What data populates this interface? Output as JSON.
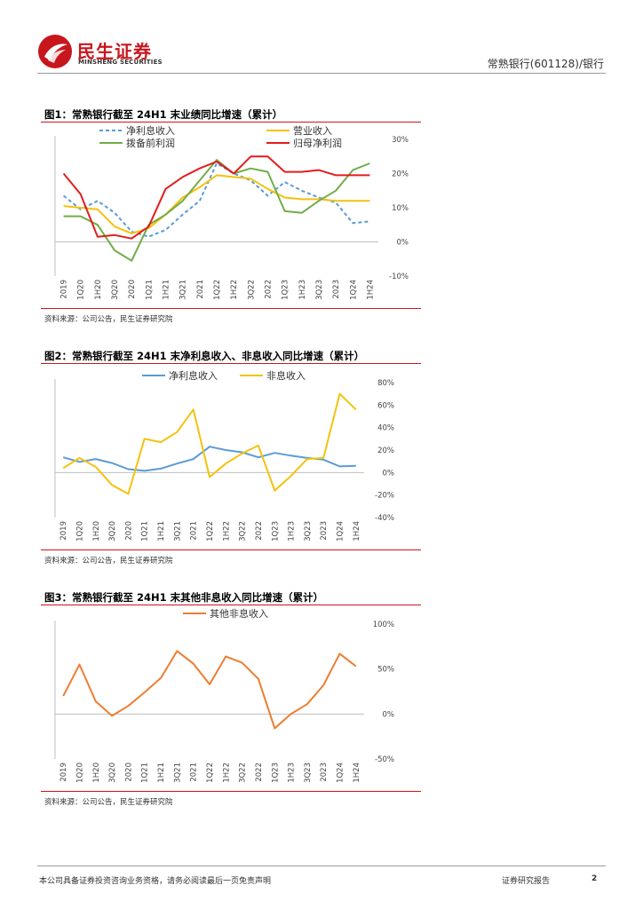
{
  "header": {
    "logo_cn": "民生证券",
    "logo_en": "MINSHENG SECURITIES",
    "right_text": "常熟银行(601128)/银行"
  },
  "footer": {
    "disclaimer": "本公司具备证券投资咨询业务资格，请务必阅读最后一页免责声明",
    "report_type": "证券研究报告",
    "page_number": "2"
  },
  "colors": {
    "brand_red": "#c8161d",
    "dash_blue": "#5b9bd5",
    "gold": "#f4c20d",
    "green": "#70ad47",
    "red": "#e31c1c",
    "orange": "#ed7d31",
    "solid_blue": "#5b9bd5"
  },
  "chart_data": [
    {
      "type": "line",
      "figure_title": "图1：常熟银行截至 24H1 末业绩同比增速（累计）",
      "source": "资料来源：公司公告，民生证券研究院",
      "categories": [
        "2019",
        "1Q20",
        "1H20",
        "3Q20",
        "2020",
        "1Q21",
        "1H21",
        "3Q21",
        "2021",
        "1Q22",
        "1H22",
        "3Q22",
        "2022",
        "1Q23",
        "1H23",
        "3Q23",
        "2023",
        "1Q24",
        "1H24"
      ],
      "ylim": [
        -10,
        30
      ],
      "yticks": [
        -10,
        0,
        10,
        20,
        30
      ],
      "ytick_labels": [
        "-10%",
        "0%",
        "10%",
        "20%",
        "30%"
      ],
      "axis_side": "right",
      "series": [
        {
          "name": "净利息收入",
          "style": "dashed",
          "color": "#5b9bd5",
          "values": [
            13.5,
            9.5,
            12,
            8.5,
            3,
            1.5,
            3.5,
            8,
            12,
            23,
            20,
            18,
            13.5,
            17.5,
            15,
            13,
            11.5,
            5.5,
            6
          ]
        },
        {
          "name": "营业收入",
          "style": "solid",
          "color": "#f4c20d",
          "values": [
            10.5,
            10,
            9.5,
            4.5,
            2.5,
            4,
            8,
            13,
            16,
            19.5,
            19,
            18.5,
            15.5,
            13,
            12.5,
            12.5,
            12,
            12,
            12
          ]
        },
        {
          "name": "拨备前利润",
          "style": "solid",
          "color": "#70ad47",
          "values": [
            7.5,
            7.5,
            5,
            -2.5,
            -5.5,
            5,
            8,
            12,
            18,
            24,
            20,
            21.5,
            20.5,
            9,
            8.5,
            12,
            15,
            21,
            23
          ]
        },
        {
          "name": "归母净利润",
          "style": "solid",
          "color": "#e31c1c",
          "values": [
            20,
            14,
            1.5,
            2,
            1,
            4.5,
            15.5,
            19,
            21.5,
            23.5,
            20,
            25,
            25,
            20.5,
            20.5,
            21,
            19.5,
            19.5,
            19.5
          ]
        }
      ],
      "legend": "top"
    },
    {
      "type": "line",
      "figure_title": "图2：常熟银行截至 24H1 末净利息收入、非息收入同比增速（累计）",
      "source": "资料来源：公司公告，民生证券研究院",
      "categories": [
        "2019",
        "1Q20",
        "1H20",
        "3Q20",
        "2020",
        "1Q21",
        "1H21",
        "3Q21",
        "2021",
        "1Q22",
        "1H22",
        "3Q22",
        "2022",
        "1Q23",
        "1H23",
        "3Q23",
        "2023",
        "1Q24",
        "1H24"
      ],
      "ylim": [
        -40,
        80
      ],
      "yticks": [
        -40,
        -20,
        0,
        20,
        40,
        60,
        80
      ],
      "ytick_labels": [
        "-40%",
        "-20%",
        "0%",
        "20%",
        "40%",
        "60%",
        "80%"
      ],
      "axis_side": "right",
      "series": [
        {
          "name": "净利息收入",
          "style": "solid",
          "color": "#5b9bd5",
          "values": [
            13.5,
            9.5,
            12,
            8.5,
            3,
            1.5,
            3.5,
            8,
            12,
            23,
            20,
            18,
            13.5,
            17.5,
            15,
            13,
            11.5,
            5.5,
            6
          ]
        },
        {
          "name": "非息收入",
          "style": "solid",
          "color": "#f4c20d",
          "values": [
            4,
            13,
            5,
            -11,
            -19,
            30,
            27,
            36,
            56,
            -4,
            8,
            17,
            24,
            -16,
            -3,
            12,
            13,
            70,
            56
          ]
        }
      ],
      "legend": "top"
    },
    {
      "type": "line",
      "figure_title": "图3：常熟银行截至 24H1 末其他非息收入同比增速（累计）",
      "source": "资料来源：公司公告，民生证券研究院",
      "categories": [
        "2019",
        "1Q20",
        "1H20",
        "3Q20",
        "2020",
        "1Q21",
        "1H21",
        "3Q21",
        "2021",
        "1Q22",
        "1H22",
        "3Q22",
        "2022",
        "1Q23",
        "1H23",
        "3Q23",
        "2023",
        "1Q24",
        "1H24"
      ],
      "ylim": [
        -50,
        100
      ],
      "yticks": [
        -50,
        0,
        50,
        100
      ],
      "ytick_labels": [
        "-50%",
        "0%",
        "50%",
        "100%"
      ],
      "axis_side": "right",
      "series": [
        {
          "name": "其他非息收入",
          "style": "solid",
          "color": "#ed7d31",
          "values": [
            20,
            55,
            14,
            -2,
            9,
            24,
            40,
            70,
            56,
            33,
            64,
            57,
            39,
            -16,
            0,
            11,
            32,
            67,
            53
          ]
        }
      ],
      "legend": "top"
    }
  ]
}
